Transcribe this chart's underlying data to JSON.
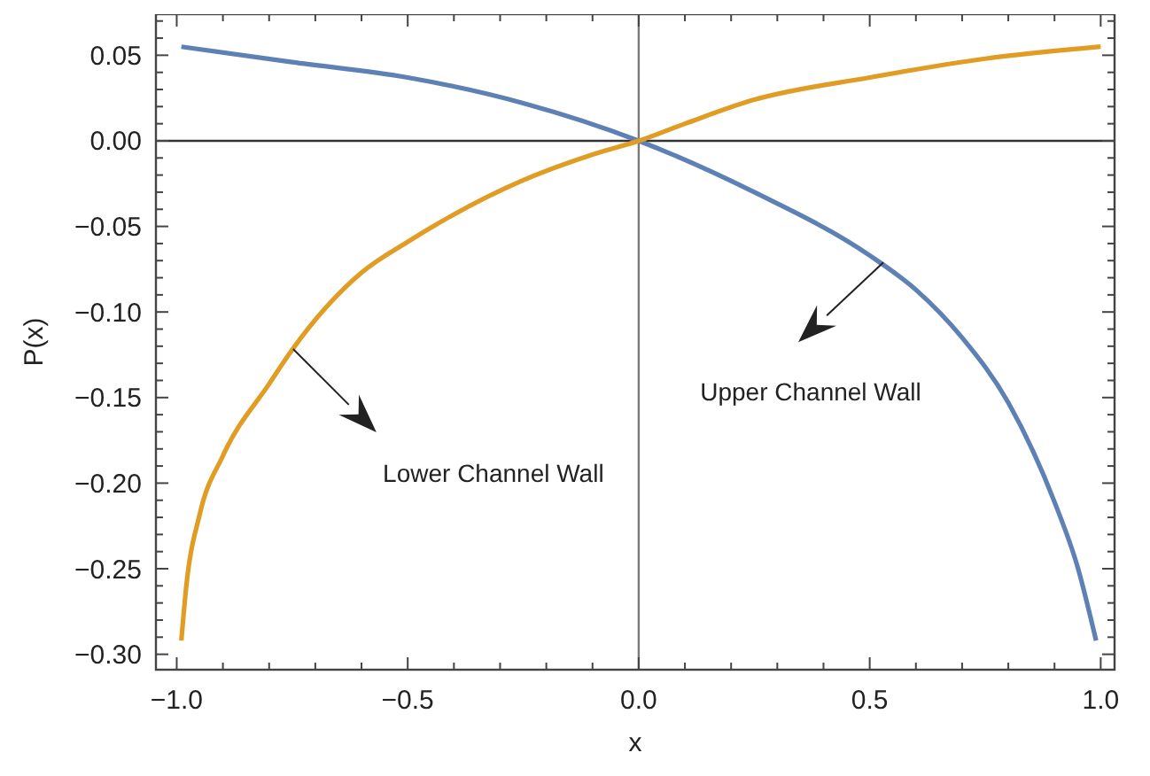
{
  "chart_data": {
    "type": "line",
    "xlabel": "x",
    "ylabel": "P(x)",
    "xlim": [
      -1.045,
      1.03
    ],
    "ylim": [
      -0.309,
      0.074
    ],
    "xticks": [
      {
        "value": -1,
        "label": "−1.0"
      },
      {
        "value": -0.9,
        "label": null
      },
      {
        "value": -0.8,
        "label": null
      },
      {
        "value": -0.7,
        "label": null
      },
      {
        "value": -0.6,
        "label": null
      },
      {
        "value": -0.5,
        "label": "−0.5"
      },
      {
        "value": -0.4,
        "label": null
      },
      {
        "value": -0.3,
        "label": null
      },
      {
        "value": -0.2,
        "label": null
      },
      {
        "value": -0.1,
        "label": null
      },
      {
        "value": 0,
        "label": "0.0"
      },
      {
        "value": 0.1,
        "label": null
      },
      {
        "value": 0.2,
        "label": null
      },
      {
        "value": 0.3,
        "label": null
      },
      {
        "value": 0.4,
        "label": null
      },
      {
        "value": 0.5,
        "label": "0.5"
      },
      {
        "value": 0.6,
        "label": null
      },
      {
        "value": 0.7,
        "label": null
      },
      {
        "value": 0.8,
        "label": null
      },
      {
        "value": 0.9,
        "label": null
      },
      {
        "value": 1,
        "label": "1.0"
      }
    ],
    "yticks": [
      {
        "value": -0.3,
        "label": "−0.30"
      },
      {
        "value": -0.29,
        "label": null
      },
      {
        "value": -0.28,
        "label": null
      },
      {
        "value": -0.27,
        "label": null
      },
      {
        "value": -0.26,
        "label": null
      },
      {
        "value": -0.25,
        "label": "−0.25"
      },
      {
        "value": -0.24,
        "label": null
      },
      {
        "value": -0.23,
        "label": null
      },
      {
        "value": -0.22,
        "label": null
      },
      {
        "value": -0.21,
        "label": null
      },
      {
        "value": -0.2,
        "label": "−0.20"
      },
      {
        "value": -0.19,
        "label": null
      },
      {
        "value": -0.18,
        "label": null
      },
      {
        "value": -0.17,
        "label": null
      },
      {
        "value": -0.16,
        "label": null
      },
      {
        "value": -0.15,
        "label": "−0.15"
      },
      {
        "value": -0.14,
        "label": null
      },
      {
        "value": -0.13,
        "label": null
      },
      {
        "value": -0.12,
        "label": null
      },
      {
        "value": -0.11,
        "label": null
      },
      {
        "value": -0.1,
        "label": "−0.10"
      },
      {
        "value": -0.09,
        "label": null
      },
      {
        "value": -0.08,
        "label": null
      },
      {
        "value": -0.07,
        "label": null
      },
      {
        "value": -0.06,
        "label": null
      },
      {
        "value": -0.05,
        "label": "−0.05"
      },
      {
        "value": -0.04,
        "label": null
      },
      {
        "value": -0.03,
        "label": null
      },
      {
        "value": -0.02,
        "label": null
      },
      {
        "value": -0.01,
        "label": null
      },
      {
        "value": 0,
        "label": "0.00"
      },
      {
        "value": 0.01,
        "label": null
      },
      {
        "value": 0.02,
        "label": null
      },
      {
        "value": 0.03,
        "label": null
      },
      {
        "value": 0.04,
        "label": null
      },
      {
        "value": 0.05,
        "label": "0.05"
      },
      {
        "value": 0.06,
        "label": null
      },
      {
        "value": 0.07,
        "label": null
      }
    ],
    "grid": false,
    "marker": "none",
    "line_style": "solid",
    "ref_lines": [
      {
        "axis": "x",
        "value": 0,
        "color": "#7a7a7a"
      },
      {
        "axis": "y",
        "value": 0,
        "color": "#333333"
      }
    ],
    "series": [
      {
        "color": "#5e81b5",
        "x": [
          -0.99,
          -0.75,
          -0.5,
          -0.25,
          0,
          0.25,
          0.5,
          0.6,
          0.7,
          0.8,
          0.9,
          0.95,
          0.99
        ],
        "values": [
          0.055,
          0.046,
          0.037,
          0.022,
          0,
          -0.03,
          -0.067,
          -0.087,
          -0.115,
          -0.153,
          -0.211,
          -0.249,
          -0.292
        ]
      },
      {
        "color": "#e19c24",
        "x": [
          -0.99,
          -0.98,
          -0.95,
          -0.9,
          -0.8,
          -0.75,
          -0.6,
          -0.5,
          -0.25,
          -0.1,
          0,
          0.1,
          0.25,
          0.5,
          0.75,
          1.0
        ],
        "values": [
          -0.292,
          -0.262,
          -0.218,
          -0.184,
          -0.142,
          -0.122,
          -0.077,
          -0.059,
          -0.023,
          -0.008,
          0,
          0.01,
          0.024,
          0.037,
          0.048,
          0.055
        ]
      }
    ],
    "annotations": [
      "Lower Channel Wall",
      "Upper Channel Wall"
    ]
  }
}
